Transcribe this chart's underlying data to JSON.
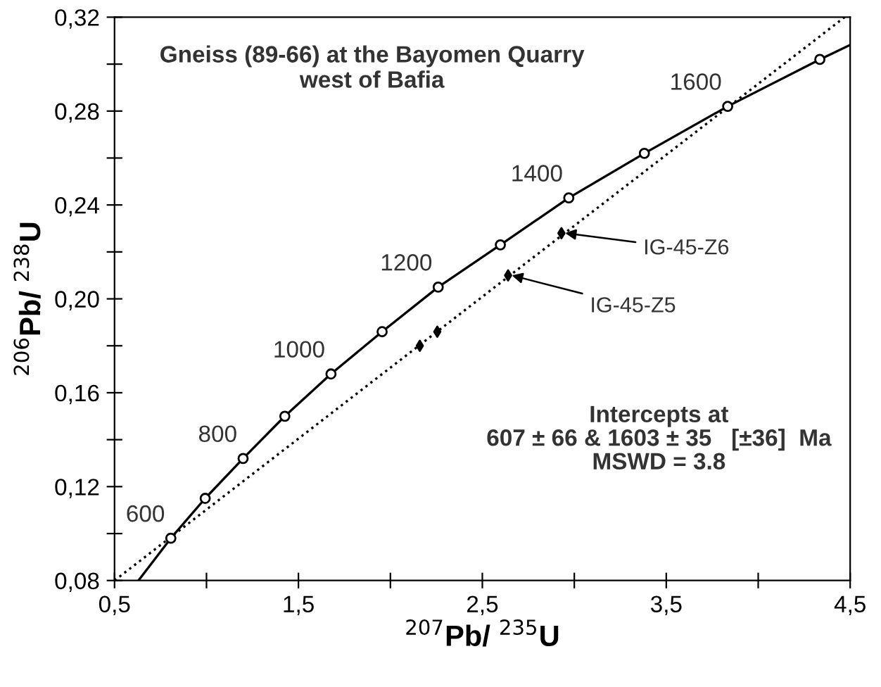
{
  "chart_data": {
    "type": "line",
    "title": "Gneiss (89-66) at the Bayomen Quarry\nwest of Bafia",
    "xlabel": "$^{207}$Pb/ $^{235}$U",
    "ylabel": "$^{206}$Pb/ $^{238}$U",
    "series": [
      {
        "color": "#000000",
        "line_style": "solid",
        "x": [
          0.63,
          0.806,
          0.993,
          1.199,
          1.426,
          1.677,
          1.955,
          2.26,
          2.598,
          2.97,
          3.381,
          3.834,
          4.335,
          4.495
        ],
        "values": [
          0.08,
          0.098,
          0.115,
          0.132,
          0.15,
          0.168,
          0.186,
          0.205,
          0.223,
          0.243,
          0.262,
          0.282,
          0.302,
          0.308
        ]
      },
      {
        "type": "scatter",
        "color": "#000000",
        "marker": "circle",
        "x": [
          0.806,
          0.993,
          1.199,
          1.426,
          1.677,
          1.955,
          2.26,
          2.598,
          2.97,
          3.381,
          3.834,
          4.335
        ],
        "values": [
          0.098,
          0.115,
          0.132,
          0.15,
          0.168,
          0.186,
          0.205,
          0.223,
          0.243,
          0.262,
          0.282,
          0.302
        ]
      },
      {
        "color": "#000000",
        "line_style": "dotted",
        "x": [
          0.5,
          4.47
        ],
        "values": [
          0.08,
          0.32
        ]
      },
      {
        "type": "scatter",
        "color": "#000000",
        "marker": "diamond",
        "x": [
          2.16,
          2.255,
          2.64,
          2.93
        ],
        "values": [
          0.18,
          0.186,
          0.21,
          0.228
        ]
      }
    ],
    "annotations": [
      {
        "text": "600",
        "x": 0.806,
        "y": 0.098
      },
      {
        "text": "800",
        "x": 1.199,
        "y": 0.132
      },
      {
        "text": "1000",
        "x": 1.677,
        "y": 0.168
      },
      {
        "text": "1200",
        "x": 2.26,
        "y": 0.205
      },
      {
        "text": "1400",
        "x": 2.97,
        "y": 0.243
      },
      {
        "text": "1600",
        "x": 3.834,
        "y": 0.282
      },
      {
        "text": "IG-45-Z6",
        "x": 2.95,
        "y": 0.228
      },
      {
        "text": "IG-45-Z5",
        "x": 2.66,
        "y": 0.21
      },
      "Intercepts at\n607 ± 66 & 1603 ± 35   [±36]  Ma\nMSWD = 3.8"
    ],
    "xlim": [
      0.5,
      4.5
    ],
    "ylim": [
      0.08,
      0.32
    ],
    "xticks": [
      {
        "value": 0.5,
        "label": "0,5"
      },
      {
        "value": 1.0,
        "label": null
      },
      {
        "value": 1.5,
        "label": "1,5"
      },
      {
        "value": 2.0,
        "label": null
      },
      {
        "value": 2.5,
        "label": "2,5"
      },
      {
        "value": 3.0,
        "label": null
      },
      {
        "value": 3.5,
        "label": "3,5"
      },
      {
        "value": 4.0,
        "label": null
      },
      {
        "value": 4.5,
        "label": "4,5"
      }
    ],
    "yticks": [
      {
        "value": 0.08,
        "label": "0,08"
      },
      {
        "value": 0.1,
        "label": null
      },
      {
        "value": 0.12,
        "label": "0,12"
      },
      {
        "value": 0.14,
        "label": null
      },
      {
        "value": 0.16,
        "label": "0,16"
      },
      {
        "value": 0.18,
        "label": null
      },
      {
        "value": 0.2,
        "label": "0,20"
      },
      {
        "value": 0.22,
        "label": null
      },
      {
        "value": 0.24,
        "label": "0,24"
      },
      {
        "value": 0.26,
        "label": null
      },
      {
        "value": 0.28,
        "label": "0,28"
      },
      {
        "value": 0.3,
        "label": null
      },
      {
        "value": 0.32,
        "label": "0,32"
      }
    ],
    "grid": false
  }
}
